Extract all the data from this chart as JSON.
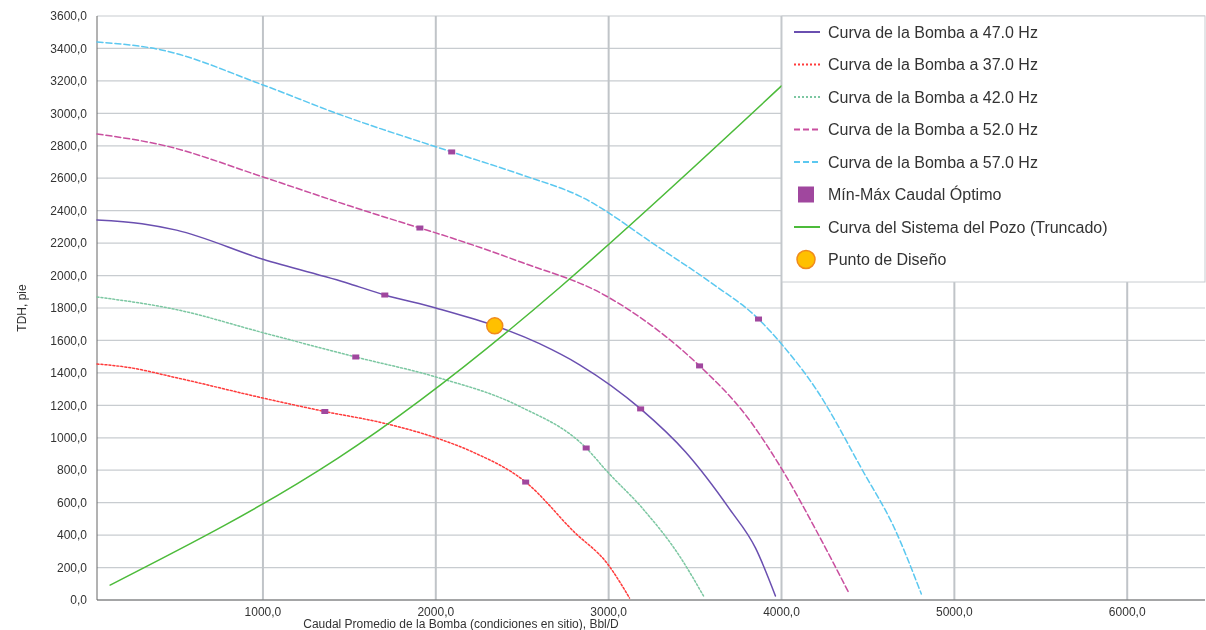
{
  "chart_data": {
    "type": "line",
    "xlabel": "Caudal Promedio de la Bomba (condiciones en sitio), Bbl/D",
    "ylabel": "TDH, pie",
    "xlim": [
      40,
      6450
    ],
    "ylim": [
      0,
      3600
    ],
    "xticks": [
      {
        "value": 1000,
        "label": "1000,0"
      },
      {
        "value": 2000,
        "label": "2000,0"
      },
      {
        "value": 3000,
        "label": "3000,0"
      },
      {
        "value": 4000,
        "label": "4000,0"
      },
      {
        "value": 5000,
        "label": "5000,0"
      },
      {
        "value": 6000,
        "label": "6000,0"
      }
    ],
    "yticks": [
      {
        "value": 0,
        "label": "0,0"
      },
      {
        "value": 200,
        "label": "200,0"
      },
      {
        "value": 400,
        "label": "400,0"
      },
      {
        "value": 600,
        "label": "600,0"
      },
      {
        "value": 800,
        "label": "800,0"
      },
      {
        "value": 1000,
        "label": "1000,0"
      },
      {
        "value": 1200,
        "label": "1200,0"
      },
      {
        "value": 1400,
        "label": "1400,0"
      },
      {
        "value": 1600,
        "label": "1600,0"
      },
      {
        "value": 1800,
        "label": "1800,0"
      },
      {
        "value": 2000,
        "label": "2000,0"
      },
      {
        "value": 2200,
        "label": "2200,0"
      },
      {
        "value": 2400,
        "label": "2400,0"
      },
      {
        "value": 2600,
        "label": "2600,0"
      },
      {
        "value": 2800,
        "label": "2800,0"
      },
      {
        "value": 3000,
        "label": "3000,0"
      },
      {
        "value": 3200,
        "label": "3200,0"
      },
      {
        "value": 3400,
        "label": "3400,0"
      },
      {
        "value": 3600,
        "label": "3600,0"
      }
    ],
    "grid": true,
    "legend": "top right",
    "marker": "none",
    "series": [
      {
        "name": "Curva de la Bomba a 47.0 Hz",
        "color": "#6a4fb0",
        "line_style": "solid",
        "x": [
          40,
          300,
          500,
          1000,
          1500,
          1705,
          2000,
          2600,
          2832,
          3185,
          3445,
          3700,
          3850,
          3965
        ],
        "values": [
          2343,
          2320,
          2280,
          2100,
          1950,
          1880,
          1800,
          1580,
          1450,
          1178,
          912,
          560,
          320,
          25
        ]
      },
      {
        "name": "Curva de la Bomba a 37.0 Hz",
        "color": "#ff3b3b",
        "line_style": "dotted",
        "x": [
          40,
          214,
          500,
          1000,
          1358,
          1700,
          2000,
          2214,
          2520,
          2800,
          2994,
          3121
        ],
        "values": [
          1455,
          1435,
          1370,
          1245,
          1162,
          1090,
          1000,
          912,
          727,
          420,
          222,
          12
        ]
      },
      {
        "name": "Curva de la Bomba a 42.0 Hz",
        "color": "#7cc7a2",
        "line_style": "dotted",
        "x": [
          40,
          500,
          1000,
          1537,
          2000,
          2480,
          2870,
          2994,
          3200,
          3410,
          3549
        ],
        "values": [
          1868,
          1790,
          1648,
          1498,
          1375,
          1196,
          937,
          789,
          560,
          271,
          25
        ]
      },
      {
        "name": "Curva de la Bomba a 52.0 Hz",
        "color": "#c94f9f",
        "line_style": "dashed",
        "x": [
          40,
          435,
          1000,
          1500,
          1908,
          2000,
          2500,
          2965,
          3300,
          3526,
          3800,
          4012,
          4200,
          4393
        ],
        "values": [
          2873,
          2800,
          2608,
          2430,
          2293,
          2263,
          2080,
          1886,
          1650,
          1443,
          1130,
          789,
          430,
          37
        ]
      },
      {
        "name": "Curva de la Bomba a 57.0 Hz",
        "color": "#5bc8f0",
        "line_style": "dashed",
        "x": [
          40,
          413,
          1000,
          1436,
          2092,
          2500,
          2832,
          3295,
          3600,
          3867,
          4000,
          4200,
          4474,
          4650,
          4809
        ],
        "values": [
          3440,
          3391,
          3175,
          2996,
          2762,
          2620,
          2490,
          2170,
          1950,
          1732,
          1578,
          1300,
          789,
          450,
          37
        ]
      },
      {
        "name": "Mín-Máx Caudal Óptimo",
        "type": "scatter",
        "marker": "square",
        "color": "#a0479e",
        "x": [
          1358,
          2520,
          1537,
          2870,
          1705,
          3185,
          1908,
          3526,
          2092,
          3867
        ],
        "values": [
          1162,
          727,
          1498,
          937,
          1880,
          1178,
          2293,
          1443,
          2762,
          1732
        ]
      },
      {
        "name": "Curva del Sistema del Pozo (Truncado)",
        "color": "#4cbb3a",
        "line_style": "solid",
        "x": [
          116,
          1434,
          4000
        ],
        "values": [
          92,
          875,
          3169
        ]
      },
      {
        "name": "Punto de Diseño",
        "type": "scatter",
        "marker": "circle",
        "color": "#ffc000",
        "x": [
          2341
        ],
        "values": [
          1690
        ]
      }
    ]
  }
}
